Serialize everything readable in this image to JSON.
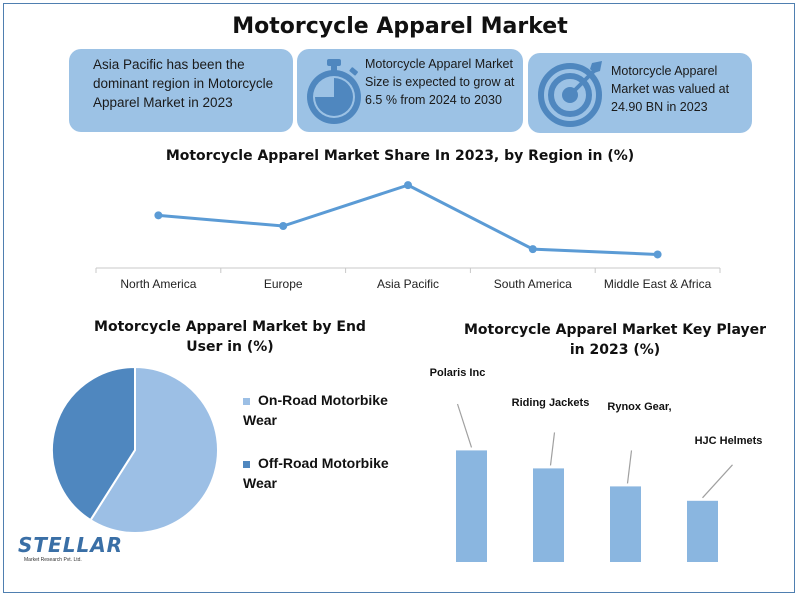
{
  "title": "Motorcycle Apparel Market",
  "cards": [
    {
      "text": "Asia Pacific has been the dominant region in Motorcycle Apparel Market in 2023",
      "icon": "none"
    },
    {
      "text": "Motorcycle Apparel Market Size is expected to grow at 6.5 % from 2024 to 2030",
      "icon": "stopwatch-icon"
    },
    {
      "text": "Motorcycle Apparel Market was valued at 24.90 BN in 2023",
      "icon": "target-icon"
    }
  ],
  "logo": {
    "brand": "STELLAR",
    "sub": "Market Research Pvt. Ltd."
  },
  "colors": {
    "accent": "#5b9bd5",
    "light": "#8fb8e1",
    "dark": "#4a86c0",
    "card": "#9cc2e5",
    "border": "#4f7fb0"
  },
  "chart_data": [
    {
      "type": "line",
      "title": "Motorcycle Apparel Market Share In 2023, by Region in (%)",
      "categories": [
        "North America",
        "Europe",
        "Asia Pacific",
        "South America",
        "Middle East & Africa"
      ],
      "values": [
        24,
        18,
        41,
        5,
        2
      ],
      "ylim": [
        0,
        45
      ],
      "grid": false,
      "legend": "none"
    },
    {
      "type": "pie",
      "title": "Motorcycle Apparel Market by End User in (%)",
      "labels": [
        "On-Road Motorbike Wear",
        "Off-Road Motorbike Wear"
      ],
      "values": [
        59,
        41
      ],
      "colors": [
        "#9cbfe5",
        "#4f87bf"
      ],
      "legend": "right"
    },
    {
      "type": "bar",
      "title": "Motorcycle Apparel Market Key Player in 2023 (%)",
      "categories": [
        "Polaris Inc",
        "Riding Jackets",
        "Rynox Gear,",
        "HJC Helmets"
      ],
      "values": [
        31,
        26,
        21,
        17
      ],
      "ylim": [
        0,
        45
      ],
      "color": "#8ab6e0"
    }
  ]
}
